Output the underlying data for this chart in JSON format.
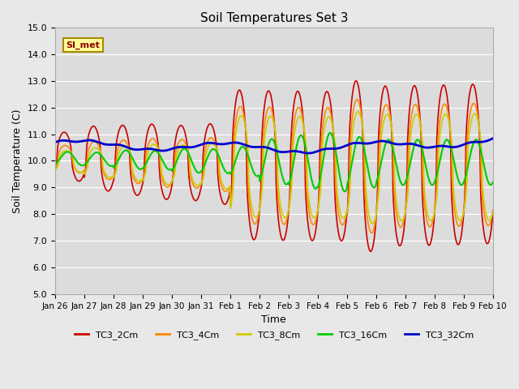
{
  "title": "Soil Temperatures Set 3",
  "xlabel": "Time",
  "ylabel": "Soil Temperature (C)",
  "ylim": [
    5.0,
    15.0
  ],
  "yticks": [
    5.0,
    6.0,
    7.0,
    8.0,
    9.0,
    10.0,
    11.0,
    12.0,
    13.0,
    14.0,
    15.0
  ],
  "xtick_labels": [
    "Jan 26",
    "Jan 27",
    "Jan 28",
    "Jan 29",
    "Jan 30",
    "Jan 31",
    "Feb 1",
    "Feb 2",
    "Feb 3",
    "Feb 4",
    "Feb 5",
    "Feb 6",
    "Feb 7",
    "Feb 8",
    "Feb 9",
    "Feb 10"
  ],
  "legend_labels": [
    "TC3_2Cm",
    "TC3_4Cm",
    "TC3_8Cm",
    "TC3_16Cm",
    "TC3_32Cm"
  ],
  "line_colors": [
    "#cc0000",
    "#ff8800",
    "#cccc00",
    "#00cc00",
    "#0000cc"
  ],
  "line_widths": [
    1.2,
    1.2,
    1.2,
    1.5,
    2.0
  ],
  "fig_bg_color": "#e8e8e8",
  "plot_bg_color": "#dcdcdc",
  "annotation_text": "SI_met",
  "annotation_fg": "#8b0000",
  "annotation_bg": "#ffff99",
  "annotation_border": "#aa8800",
  "n_days": 15,
  "pts_per_day": 48
}
